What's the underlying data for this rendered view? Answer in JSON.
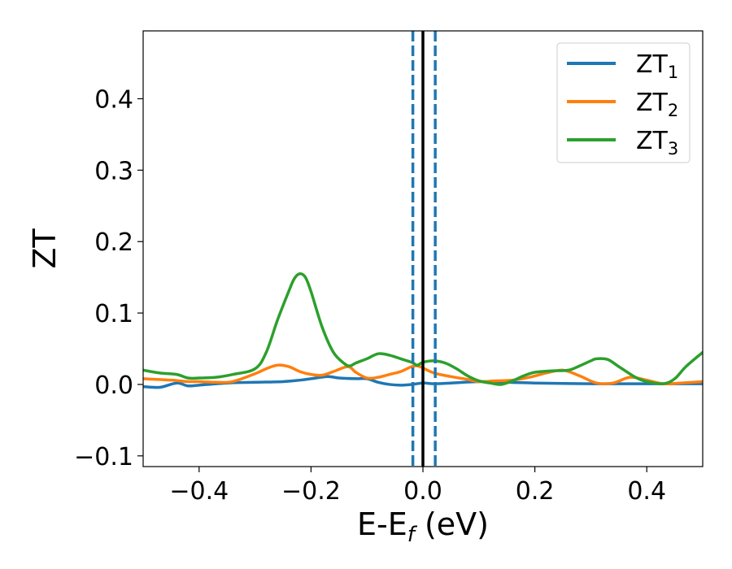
{
  "chart_data": {
    "type": "line",
    "xlabel_main": "E-E",
    "xlabel_sub": "f",
    "xlabel_unit": " (eV)",
    "ylabel": "ZT",
    "xlim": [
      -0.5,
      0.5
    ],
    "ylim": [
      -0.115,
      0.495
    ],
    "xticks": [
      -0.4,
      -0.2,
      0.0,
      0.2,
      0.4
    ],
    "xtick_labels": [
      "−0.4",
      "−0.2",
      "0.0",
      "0.2",
      "0.4"
    ],
    "yticks": [
      -0.1,
      0.0,
      0.1,
      0.2,
      0.3,
      0.4
    ],
    "ytick_labels": [
      "−0.1",
      "0.0",
      "0.1",
      "0.2",
      "0.3",
      "0.4"
    ],
    "grid": false,
    "legend_position": "top-right",
    "series": [
      {
        "name": "ZT",
        "sub": "1",
        "color": "#1f77b4",
        "x": [
          -0.5,
          -0.47,
          -0.44,
          -0.42,
          -0.4,
          -0.35,
          -0.3,
          -0.25,
          -0.22,
          -0.2,
          -0.17,
          -0.15,
          -0.12,
          -0.1,
          -0.08,
          -0.06,
          -0.04,
          -0.02,
          0.0,
          0.02,
          0.05,
          0.1,
          0.15,
          0.2,
          0.3,
          0.4,
          0.5
        ],
        "y": [
          -0.003,
          -0.004,
          0.002,
          -0.002,
          -0.001,
          0.002,
          0.003,
          0.004,
          0.006,
          0.008,
          0.011,
          0.009,
          0.008,
          0.008,
          0.003,
          0.0,
          -0.001,
          0.0,
          0.002,
          0.001,
          0.002,
          0.004,
          0.003,
          0.002,
          0.001,
          0.001,
          0.001
        ]
      },
      {
        "name": "ZT",
        "sub": "2",
        "color": "#ff7f0e",
        "x": [
          -0.5,
          -0.45,
          -0.42,
          -0.4,
          -0.37,
          -0.34,
          -0.3,
          -0.28,
          -0.26,
          -0.24,
          -0.22,
          -0.2,
          -0.18,
          -0.16,
          -0.14,
          -0.13,
          -0.12,
          -0.1,
          -0.08,
          -0.06,
          -0.04,
          -0.02,
          -0.01,
          0.0,
          0.02,
          0.05,
          0.08,
          0.1,
          0.13,
          0.16,
          0.19,
          0.22,
          0.25,
          0.28,
          0.31,
          0.34,
          0.37,
          0.4,
          0.43,
          0.46,
          0.5
        ],
        "y": [
          0.008,
          0.006,
          0.004,
          0.004,
          0.003,
          0.004,
          0.015,
          0.022,
          0.027,
          0.025,
          0.018,
          0.014,
          0.013,
          0.018,
          0.024,
          0.024,
          0.017,
          0.009,
          0.01,
          0.014,
          0.018,
          0.025,
          0.026,
          0.023,
          0.016,
          0.011,
          0.007,
          0.004,
          0.005,
          0.006,
          0.01,
          0.016,
          0.02,
          0.012,
          0.002,
          0.002,
          0.01,
          0.006,
          0.001,
          0.002,
          0.004
        ]
      },
      {
        "name": "ZT",
        "sub": "3",
        "color": "#2ca02c",
        "x": [
          -0.5,
          -0.47,
          -0.44,
          -0.42,
          -0.4,
          -0.37,
          -0.34,
          -0.3,
          -0.28,
          -0.26,
          -0.24,
          -0.23,
          -0.22,
          -0.21,
          -0.2,
          -0.18,
          -0.16,
          -0.14,
          -0.13,
          -0.12,
          -0.1,
          -0.08,
          -0.06,
          -0.04,
          -0.02,
          -0.01,
          0.0,
          0.02,
          0.04,
          0.06,
          0.08,
          0.1,
          0.12,
          0.14,
          0.16,
          0.18,
          0.2,
          0.23,
          0.26,
          0.28,
          0.3,
          0.31,
          0.33,
          0.35,
          0.38,
          0.4,
          0.43,
          0.45,
          0.47,
          0.5
        ],
        "y": [
          0.02,
          0.016,
          0.014,
          0.009,
          0.009,
          0.01,
          0.014,
          0.022,
          0.045,
          0.09,
          0.13,
          0.148,
          0.155,
          0.15,
          0.13,
          0.08,
          0.045,
          0.029,
          0.026,
          0.03,
          0.036,
          0.043,
          0.041,
          0.036,
          0.031,
          0.027,
          0.031,
          0.033,
          0.03,
          0.022,
          0.012,
          0.005,
          0.002,
          0.0,
          0.005,
          0.012,
          0.017,
          0.019,
          0.02,
          0.026,
          0.033,
          0.036,
          0.035,
          0.025,
          0.01,
          0.004,
          0.001,
          0.008,
          0.025,
          0.045
        ]
      }
    ],
    "vlines": [
      {
        "x": 0.0,
        "color": "#000000",
        "style": "solid"
      },
      {
        "x": -0.018,
        "color": "#1f77b4",
        "style": "dashed"
      },
      {
        "x": 0.022,
        "color": "#1f77b4",
        "style": "dashed"
      }
    ]
  }
}
